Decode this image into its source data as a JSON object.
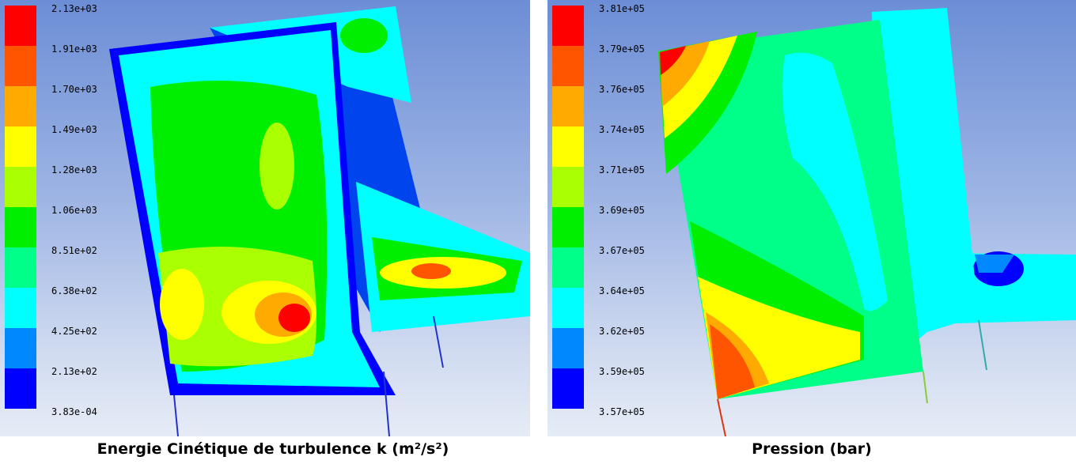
{
  "colormap": [
    "#ff0000",
    "#ff5500",
    "#ffaa00",
    "#ffff00",
    "#aaff00",
    "#00ee00",
    "#00ff88",
    "#00ffff",
    "#0088ff",
    "#0000ff"
  ],
  "panels": {
    "left": {
      "legend_ticks": [
        "2.13e+03",
        "1.91e+03",
        "1.70e+03",
        "1.49e+03",
        "1.28e+03",
        "1.06e+03",
        "8.51e+02",
        "6.38e+02",
        "4.25e+02",
        "2.13e+02",
        "3.83e-04"
      ],
      "caption": "Energie Cinétique de turbulence k (m²/s²)"
    },
    "right": {
      "legend_ticks": [
        "3.81e+05",
        "3.79e+05",
        "3.76e+05",
        "3.74e+05",
        "3.71e+05",
        "3.69e+05",
        "3.67e+05",
        "3.64e+05",
        "3.62e+05",
        "3.59e+05",
        "3.57e+05"
      ],
      "caption": "Pression (bar)"
    }
  }
}
